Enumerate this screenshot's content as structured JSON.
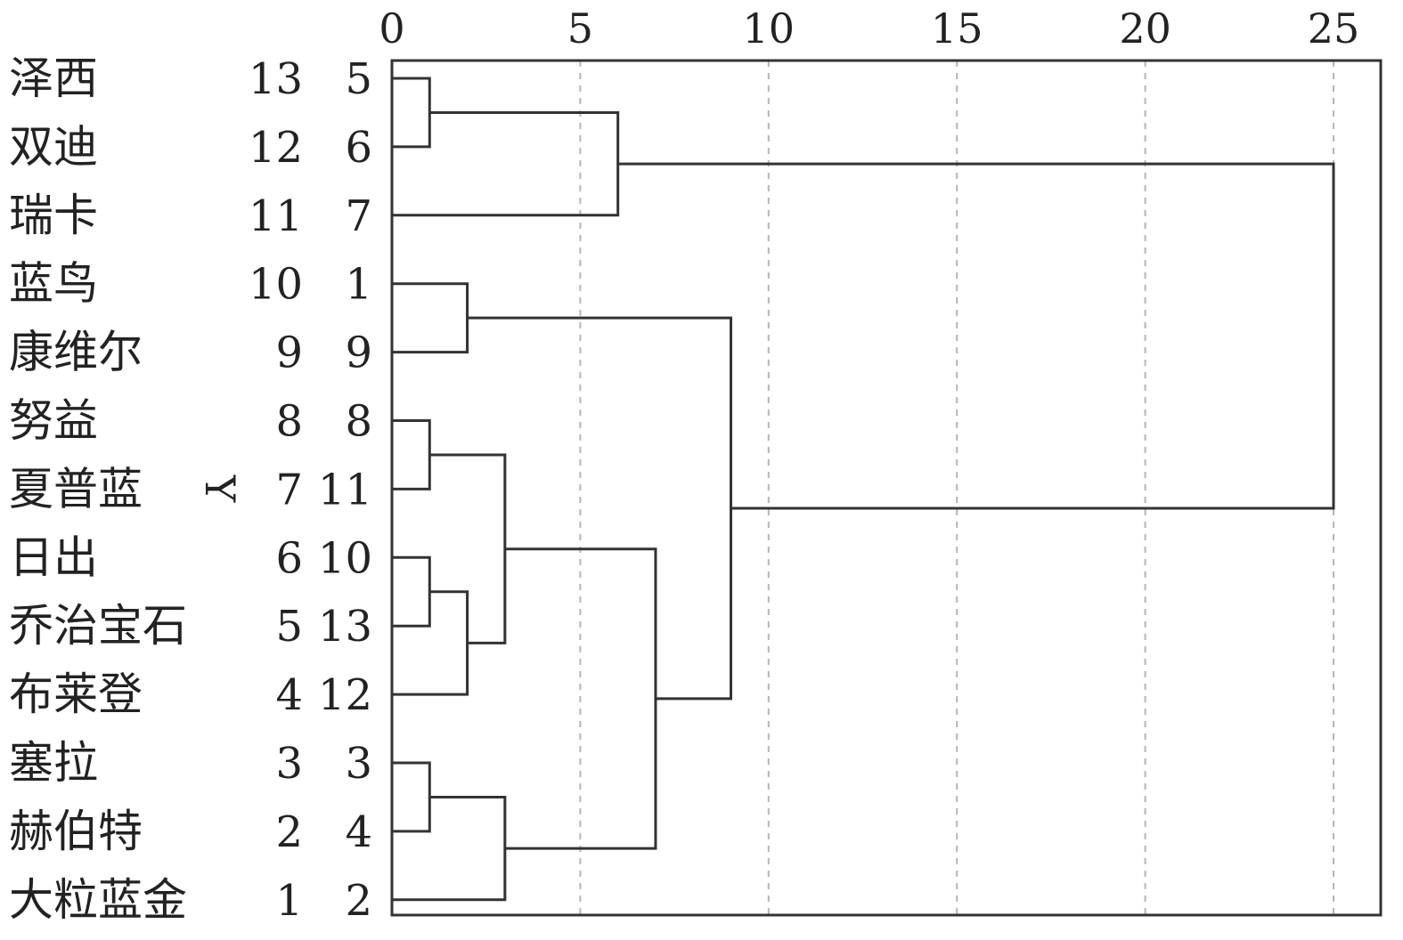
{
  "chart_data": {
    "type": "dendrogram",
    "x_axis": {
      "ticks": [
        "0",
        "5",
        "10",
        "15",
        "20",
        "25"
      ],
      "range": [
        0,
        25
      ]
    },
    "y_axis_label": "Y",
    "rows": [
      {
        "name": "泽西",
        "y_index": "13",
        "case": "5"
      },
      {
        "name": "双迪",
        "y_index": "12",
        "case": "6"
      },
      {
        "name": "瑞卡",
        "y_index": "11",
        "case": "7"
      },
      {
        "name": "蓝鸟",
        "y_index": "10",
        "case": "1"
      },
      {
        "name": "康维尔",
        "y_index": "9",
        "case": "9"
      },
      {
        "name": "努益",
        "y_index": "8",
        "case": "8"
      },
      {
        "name": "夏普蓝",
        "y_index": "7",
        "case": "11"
      },
      {
        "name": "日出",
        "y_index": "6",
        "case": "10"
      },
      {
        "name": "乔治宝石",
        "y_index": "5",
        "case": "13"
      },
      {
        "name": "布莱登",
        "y_index": "4",
        "case": "12"
      },
      {
        "name": "塞拉",
        "y_index": "3",
        "case": "3"
      },
      {
        "name": "赫伯特",
        "y_index": "2",
        "case": "4"
      },
      {
        "name": "大粒蓝金",
        "y_index": "1",
        "case": "2"
      }
    ],
    "merges": [
      {
        "id": "m1",
        "left": "r0",
        "right": "r1",
        "distance": 1
      },
      {
        "id": "m2",
        "left": "m1",
        "right": "r2",
        "distance": 6
      },
      {
        "id": "m3",
        "left": "r3",
        "right": "r4",
        "distance": 2
      },
      {
        "id": "m4",
        "left": "r5",
        "right": "r6",
        "distance": 1
      },
      {
        "id": "m5",
        "left": "r7",
        "right": "r8",
        "distance": 1
      },
      {
        "id": "m6",
        "left": "m5",
        "right": "r9",
        "distance": 2
      },
      {
        "id": "m7",
        "left": "m4",
        "right": "m6",
        "distance": 3
      },
      {
        "id": "m8",
        "left": "r10",
        "right": "r11",
        "distance": 1
      },
      {
        "id": "m9",
        "left": "m8",
        "right": "r12",
        "distance": 3
      },
      {
        "id": "m10",
        "left": "m7",
        "right": "m9",
        "distance": 7
      },
      {
        "id": "m11",
        "left": "m3",
        "right": "m10",
        "distance": 9
      },
      {
        "id": "m12",
        "left": "m2",
        "right": "m11",
        "distance": 25
      }
    ]
  }
}
